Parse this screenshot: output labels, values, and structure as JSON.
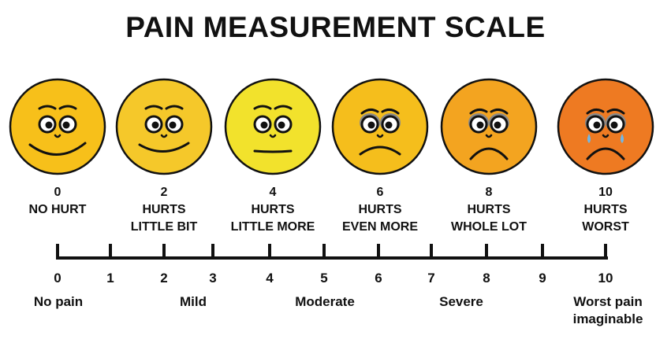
{
  "title": "PAIN MEASUREMENT SCALE",
  "faces": [
    {
      "number": "0",
      "line1": "NO HURT",
      "line2": "",
      "color": "#F7C01A",
      "mouth": "big-smile",
      "tears": false,
      "shadow": false
    },
    {
      "number": "2",
      "line1": "HURTS",
      "line2": "LITTLE BIT",
      "color": "#F5C82A",
      "mouth": "smile",
      "tears": false,
      "shadow": false
    },
    {
      "number": "4",
      "line1": "HURTS",
      "line2": "LITTLE MORE",
      "color": "#F2E22C",
      "mouth": "flat",
      "tears": false,
      "shadow": false
    },
    {
      "number": "6",
      "line1": "HURTS",
      "line2": "EVEN MORE",
      "color": "#F5BE1C",
      "mouth": "frown",
      "tears": false,
      "shadow": true
    },
    {
      "number": "8",
      "line1": "HURTS",
      "line2": "WHOLE LOT",
      "color": "#F3A420",
      "mouth": "big-frown",
      "tears": false,
      "shadow": true
    },
    {
      "number": "10",
      "line1": "HURTS",
      "line2": "WORST",
      "color": "#EE7A22",
      "mouth": "big-frown",
      "tears": true,
      "shadow": true
    }
  ],
  "scale": {
    "ticks": [
      "0",
      "1",
      "2",
      "3",
      "4",
      "5",
      "6",
      "7",
      "8",
      "9",
      "10"
    ],
    "categories": [
      {
        "line1": "No pain",
        "line2": ""
      },
      {
        "line1": "Mild",
        "line2": ""
      },
      {
        "line1": "Moderate",
        "line2": ""
      },
      {
        "line1": "Severe",
        "line2": ""
      },
      {
        "line1": "Worst pain",
        "line2": "imaginable"
      }
    ]
  },
  "colors": {
    "ink": "#111111",
    "tear": "#6FB8E8",
    "eye_shadow": "#8A8A8A"
  }
}
